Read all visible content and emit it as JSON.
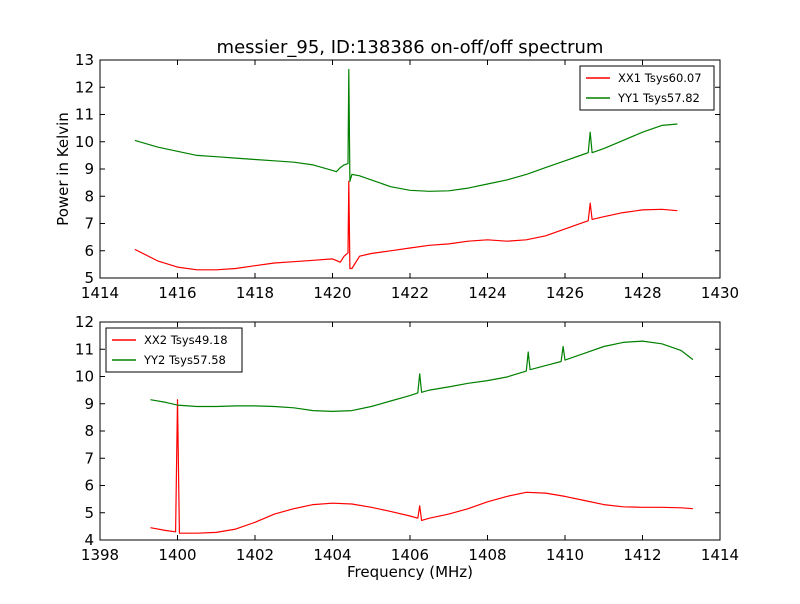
{
  "figure": {
    "title": "messier_95, ID:138386 on-off/off spectrum"
  },
  "colors": {
    "xx": "#ff0000",
    "yy": "#008000",
    "axes": "#000000",
    "background": "#ffffff"
  },
  "chart_data": [
    {
      "type": "line",
      "title": "messier_95, ID:138386 on-off/off spectrum",
      "xlabel": "",
      "ylabel": "Power in Kelvin",
      "xlim": [
        1414,
        1430
      ],
      "ylim": [
        5,
        13
      ],
      "xticks": [
        1414,
        1416,
        1418,
        1420,
        1422,
        1424,
        1426,
        1428,
        1430
      ],
      "yticks": [
        5,
        6,
        7,
        8,
        9,
        10,
        11,
        12,
        13
      ],
      "grid": false,
      "legend_position": "top-right",
      "series": [
        {
          "name": "XX1 Tsys60.07",
          "color": "#ff0000",
          "x": [
            1414.9,
            1415.5,
            1416.0,
            1416.5,
            1417.0,
            1417.5,
            1418.0,
            1418.5,
            1419.0,
            1419.5,
            1420.0,
            1420.2,
            1420.3,
            1420.4,
            1420.42,
            1420.45,
            1420.5,
            1420.7,
            1421.0,
            1421.5,
            1422.0,
            1422.5,
            1423.0,
            1423.5,
            1424.0,
            1424.5,
            1425.0,
            1425.5,
            1426.0,
            1426.5,
            1426.6,
            1426.65,
            1426.7,
            1427.0,
            1427.5,
            1428.0,
            1428.5,
            1428.9
          ],
          "y": [
            6.05,
            5.62,
            5.4,
            5.3,
            5.3,
            5.35,
            5.45,
            5.55,
            5.6,
            5.65,
            5.7,
            5.58,
            5.8,
            5.92,
            8.55,
            5.35,
            5.35,
            5.8,
            5.9,
            6.0,
            6.1,
            6.2,
            6.25,
            6.35,
            6.4,
            6.35,
            6.4,
            6.55,
            6.8,
            7.05,
            7.1,
            7.75,
            7.15,
            7.25,
            7.4,
            7.5,
            7.52,
            7.47
          ]
        },
        {
          "name": "YY1 Tsys57.82",
          "color": "#008000",
          "x": [
            1414.9,
            1415.5,
            1416.0,
            1416.5,
            1417.0,
            1417.5,
            1418.0,
            1418.5,
            1419.0,
            1419.5,
            1420.0,
            1420.1,
            1420.2,
            1420.3,
            1420.4,
            1420.42,
            1420.45,
            1420.5,
            1420.7,
            1421.0,
            1421.5,
            1422.0,
            1422.5,
            1423.0,
            1423.5,
            1424.0,
            1424.5,
            1425.0,
            1425.5,
            1426.0,
            1426.5,
            1426.6,
            1426.65,
            1426.7,
            1427.0,
            1427.5,
            1428.0,
            1428.5,
            1428.9
          ],
          "y": [
            10.05,
            9.8,
            9.65,
            9.5,
            9.45,
            9.4,
            9.35,
            9.3,
            9.25,
            9.15,
            8.95,
            8.9,
            9.05,
            9.15,
            9.2,
            12.65,
            8.55,
            8.8,
            8.75,
            8.6,
            8.35,
            8.22,
            8.18,
            8.2,
            8.3,
            8.45,
            8.6,
            8.8,
            9.05,
            9.3,
            9.55,
            9.6,
            10.35,
            9.6,
            9.75,
            10.05,
            10.35,
            10.6,
            10.65
          ]
        }
      ]
    },
    {
      "type": "line",
      "title": "",
      "xlabel": "Frequency (MHz)",
      "ylabel": "",
      "xlim": [
        1398,
        1414
      ],
      "ylim": [
        4,
        12
      ],
      "xticks": [
        1398,
        1400,
        1402,
        1404,
        1406,
        1408,
        1410,
        1412,
        1414
      ],
      "yticks": [
        4,
        5,
        6,
        7,
        8,
        9,
        10,
        11,
        12
      ],
      "grid": false,
      "legend_position": "top-left",
      "series": [
        {
          "name": "XX2 Tsys49.18",
          "color": "#ff0000",
          "x": [
            1399.3,
            1399.7,
            1399.95,
            1400.0,
            1400.05,
            1400.5,
            1401.0,
            1401.5,
            1402.0,
            1402.5,
            1403.0,
            1403.5,
            1404.0,
            1404.5,
            1405.0,
            1405.5,
            1406.0,
            1406.2,
            1406.25,
            1406.3,
            1406.5,
            1407.0,
            1407.5,
            1408.0,
            1408.5,
            1409.0,
            1409.5,
            1410.0,
            1410.5,
            1411.0,
            1411.5,
            1412.0,
            1412.5,
            1413.0,
            1413.3
          ],
          "y": [
            4.45,
            4.35,
            4.3,
            9.15,
            4.25,
            4.25,
            4.28,
            4.4,
            4.65,
            4.95,
            5.15,
            5.3,
            5.35,
            5.32,
            5.2,
            5.05,
            4.88,
            4.8,
            5.25,
            4.72,
            4.8,
            4.95,
            5.15,
            5.4,
            5.6,
            5.75,
            5.72,
            5.6,
            5.45,
            5.3,
            5.22,
            5.2,
            5.2,
            5.18,
            5.15
          ]
        },
        {
          "name": "YY2 Tsys57.58",
          "color": "#008000",
          "x": [
            1399.3,
            1399.7,
            1400.0,
            1400.5,
            1401.0,
            1401.5,
            1402.0,
            1402.5,
            1403.0,
            1403.5,
            1404.0,
            1404.5,
            1405.0,
            1405.5,
            1406.0,
            1406.2,
            1406.25,
            1406.3,
            1406.5,
            1407.0,
            1407.5,
            1408.0,
            1408.5,
            1409.0,
            1409.05,
            1409.1,
            1409.5,
            1409.9,
            1409.95,
            1410.0,
            1410.5,
            1411.0,
            1411.5,
            1412.0,
            1412.5,
            1413.0,
            1413.3
          ],
          "y": [
            9.15,
            9.05,
            8.95,
            8.9,
            8.9,
            8.92,
            8.92,
            8.9,
            8.85,
            8.75,
            8.72,
            8.75,
            8.9,
            9.1,
            9.3,
            9.4,
            10.1,
            9.42,
            9.5,
            9.62,
            9.75,
            9.85,
            9.98,
            10.2,
            10.9,
            10.25,
            10.4,
            10.55,
            11.1,
            10.6,
            10.85,
            11.1,
            11.25,
            11.3,
            11.2,
            10.95,
            10.62
          ]
        }
      ]
    }
  ]
}
